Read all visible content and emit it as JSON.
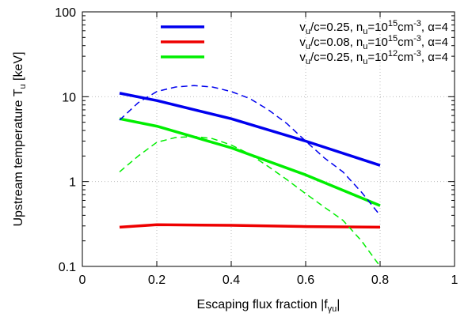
{
  "chart_data": {
    "type": "line",
    "title": "",
    "xlabel": "Escaping flux fraction |f",
    "xlabel_sub": "γu",
    "xlabel_end": "|",
    "ylabel": "Upstream temperature T",
    "ylabel_sub": "u",
    "ylabel_end": " [keV]",
    "xlim": [
      0,
      1
    ],
    "ylim": [
      0.1,
      100
    ],
    "y_scale": "log",
    "x_ticks": [
      0,
      0.2,
      0.4,
      0.6,
      0.8,
      1
    ],
    "x_tick_labels": [
      "0",
      "0.2",
      "0.4",
      "0.6",
      "0.8",
      "1"
    ],
    "y_ticks": [
      0.1,
      1,
      10,
      100
    ],
    "y_tick_labels": [
      "0.1",
      "1",
      "10",
      "100"
    ],
    "grid": true,
    "legend_position": "top-right",
    "series": [
      {
        "legend": {
          "a": "v",
          "a_sub": "u",
          "b": "/c=0.25, n",
          "b_sub": "u",
          "c": "=10",
          "c_sup": "15",
          "d": "cm",
          "d_sup": "-3",
          "e": ", α=4"
        },
        "color": "#0000ee",
        "style": "solid",
        "x": [
          0.1,
          0.2,
          0.4,
          0.6,
          0.8
        ],
        "y": [
          11,
          9,
          5.5,
          3.0,
          1.55
        ]
      },
      {
        "legend": {
          "a": "v",
          "a_sub": "u",
          "b": "/c=0.08, n",
          "b_sub": "u",
          "c": "=10",
          "c_sup": "15",
          "d": "cm",
          "d_sup": "-3",
          "e": ", α=4"
        },
        "color": "#ee0000",
        "style": "solid",
        "x": [
          0.1,
          0.2,
          0.4,
          0.6,
          0.8
        ],
        "y": [
          0.29,
          0.31,
          0.305,
          0.295,
          0.29
        ]
      },
      {
        "legend": {
          "a": "v",
          "a_sub": "u",
          "b": "/c=0.25, n",
          "b_sub": "u",
          "c": "=10",
          "c_sup": "12",
          "d": "cm",
          "d_sup": "-3",
          "e": ", α=4"
        },
        "color": "#00ee00",
        "style": "solid",
        "x": [
          0.1,
          0.2,
          0.4,
          0.6,
          0.8
        ],
        "y": [
          5.5,
          4.5,
          2.5,
          1.2,
          0.52
        ]
      },
      {
        "color": "#0000ee",
        "style": "dashed",
        "x": [
          0.1,
          0.15,
          0.2,
          0.25,
          0.3,
          0.35,
          0.4,
          0.45,
          0.5,
          0.55,
          0.6,
          0.65,
          0.7,
          0.75,
          0.8
        ],
        "y": [
          5.3,
          8.5,
          11.5,
          13,
          13.5,
          13,
          11.5,
          9.5,
          7.0,
          4.8,
          3.0,
          1.9,
          1.3,
          0.75,
          0.4
        ]
      },
      {
        "color": "#00ee00",
        "style": "dashed",
        "x": [
          0.1,
          0.15,
          0.2,
          0.25,
          0.3,
          0.35,
          0.4,
          0.45,
          0.5,
          0.55,
          0.6,
          0.65,
          0.7,
          0.75,
          0.8
        ],
        "y": [
          1.3,
          2.0,
          2.9,
          3.3,
          3.4,
          3.2,
          2.7,
          2.1,
          1.5,
          1.05,
          0.72,
          0.5,
          0.35,
          0.2,
          0.1
        ]
      }
    ]
  }
}
